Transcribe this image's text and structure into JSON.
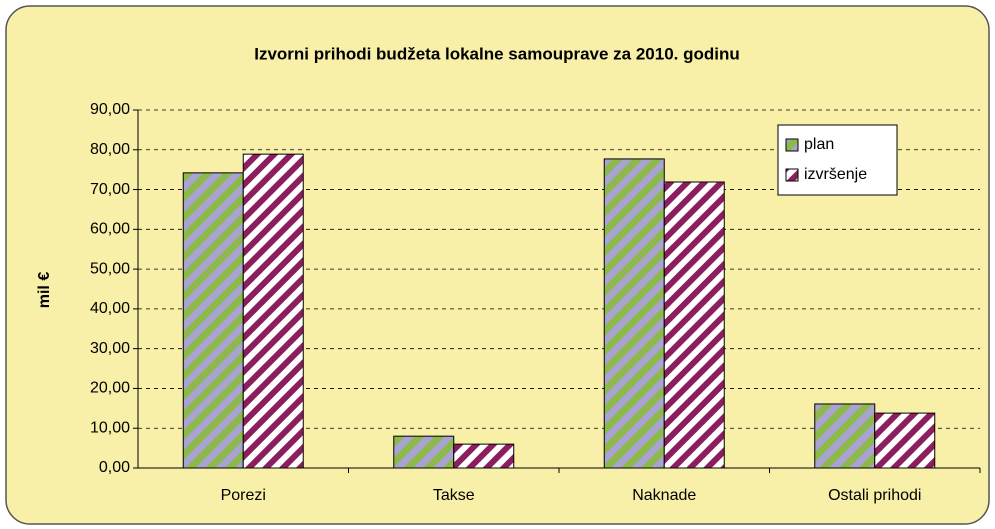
{
  "chart_data": {
    "type": "bar",
    "title": "Izvorni prihodi budžeta lokalne samouprave za 2010. godinu",
    "y_label": "mil €",
    "categories": [
      "Porezi",
      "Takse",
      "Naknade",
      "Ostali prihodi"
    ],
    "series": [
      {
        "name": "plan",
        "color": "#8db84a",
        "values": [
          74.2,
          8.0,
          77.7,
          16.1
        ]
      },
      {
        "name": "izvršenje",
        "color": "#8b1f5e",
        "values": [
          78.9,
          6.0,
          71.9,
          13.8
        ]
      }
    ],
    "ylim": [
      0,
      90
    ],
    "yticks": [
      {
        "value": 0,
        "label": "0,00"
      },
      {
        "value": 10,
        "label": "10,00"
      },
      {
        "value": 20,
        "label": "20,00"
      },
      {
        "value": 30,
        "label": "30,00"
      },
      {
        "value": 40,
        "label": "40,00"
      },
      {
        "value": 50,
        "label": "50,00"
      },
      {
        "value": 60,
        "label": "60,00"
      },
      {
        "value": 70,
        "label": "70,00"
      },
      {
        "value": 80,
        "label": "80,00"
      },
      {
        "value": 90,
        "label": "90,00"
      }
    ],
    "grid": true,
    "legend": "top-right"
  }
}
